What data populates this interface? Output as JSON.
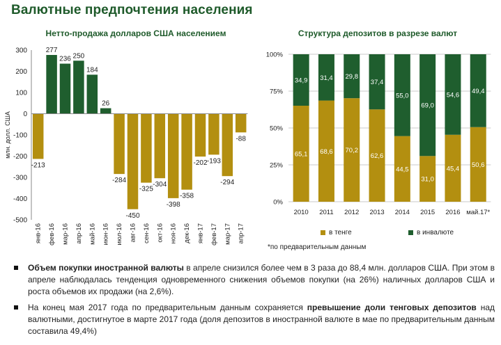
{
  "page": {
    "title": "Валютные предпочтения населения"
  },
  "colors": {
    "dark_green": "#1f5e2e",
    "gold": "#b38f10",
    "title_green": "#1e5a2a"
  },
  "chart_data": [
    {
      "type": "bar",
      "title": "Нетто-продажа долларов США населением",
      "ylabel": "млн. долл. США",
      "xlabel": "",
      "ylim": [
        -500,
        300
      ],
      "yticks": [
        300,
        200,
        100,
        0,
        -100,
        -200,
        -300,
        -400,
        -500
      ],
      "categories": [
        "янв-16",
        "фев-16",
        "мар-16",
        "апр-16",
        "май-16",
        "июн-16",
        "июл-16",
        "авг-16",
        "сен-16",
        "окт-16",
        "ноя-16",
        "дек-16",
        "янв-17",
        "фев-17",
        "мар-17",
        "апр-17"
      ],
      "values": [
        -213,
        277,
        236,
        250,
        184,
        26,
        -284,
        -450,
        -325,
        -304,
        -398,
        -358,
        -202,
        -193,
        -294,
        -88
      ],
      "positive_color": "#1f5e2e",
      "negative_color": "#b38f10",
      "grid": false
    },
    {
      "type": "bar",
      "stacked": true,
      "title": "Структура депозитов в разрезе валют",
      "xlabel": "",
      "ylabel": "",
      "ylim": [
        0,
        100
      ],
      "yticks": [
        "0%",
        "25%",
        "50%",
        "75%",
        "100%"
      ],
      "categories": [
        "2010",
        "2011",
        "2012",
        "2013",
        "2014",
        "2015",
        "2016",
        "май.17*"
      ],
      "series": [
        {
          "name": "в тенге",
          "color": "#b38f10",
          "values": [
            65.1,
            68.6,
            70.2,
            62.6,
            44.5,
            31.0,
            45.4,
            50.6
          ],
          "labels": [
            "65,1",
            "68,6",
            "70,2",
            "62,6",
            "44,5",
            "31,0",
            "45,4",
            "50,6"
          ]
        },
        {
          "name": "в инвалюте",
          "color": "#1f5e2e",
          "values": [
            34.9,
            31.4,
            29.8,
            37.4,
            55.0,
            69.0,
            54.6,
            49.4
          ],
          "labels": [
            "34,9",
            "31,4",
            "29,8",
            "37,4",
            "55,0",
            "69,0",
            "54,6",
            "49,4"
          ]
        }
      ],
      "legend": "bottom",
      "grid": true
    }
  ],
  "footnote": "*по предварительным данным",
  "bullets": [
    {
      "bold": "Объем покупки иностранной валюты",
      "text": " в апреле снизился более чем в 3 раза до 88,4 млн. долларов США. При этом в апреле наблюдалась тенденция одновременного снижения объемов покупки (на 26%) наличных долларов США и роста объемов их продажи (на 2,6%)."
    },
    {
      "pre": "На конец мая 2017 года по предварительным данным сохраняется ",
      "bold": "превышение доли тенговых депозитов",
      "post": " над валютными, достигнутое в марте 2017 года (доля депозитов в иностранной валюте в мае по предварительным данным составила 49,4%)"
    }
  ]
}
